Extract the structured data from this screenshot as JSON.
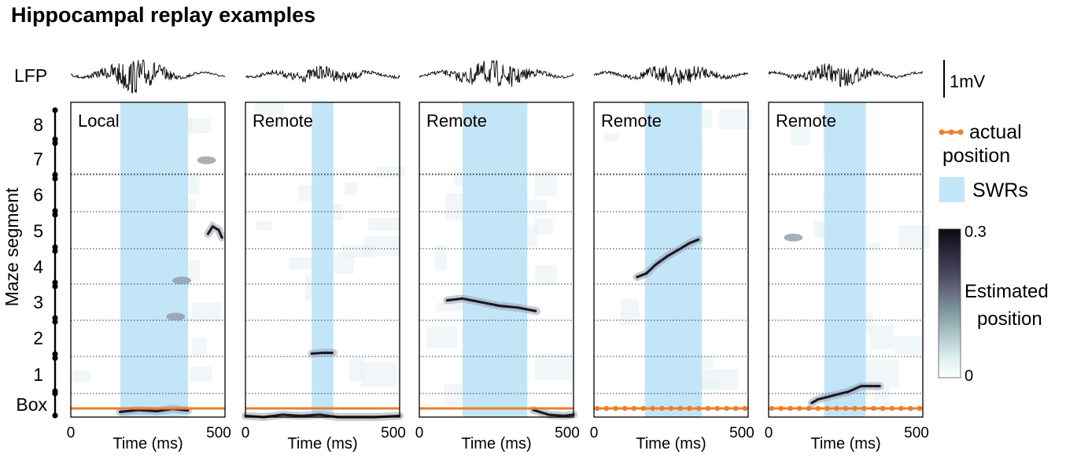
{
  "title": "Hippocampal replay examples",
  "lfp_label": "LFP",
  "scale_bar_label": "1mV",
  "y_axis_label": "Maze segment",
  "y_ticks": [
    "8",
    "7",
    "6",
    "5",
    "4",
    "3",
    "2",
    "1",
    "Box"
  ],
  "x_axis_label": "Time (ms)",
  "x_tick_start": "0",
  "x_tick_end": "500",
  "legend": {
    "actual_position_line1": "actual",
    "actual_position_line2": "position",
    "swrs": "SWRs",
    "colorbar_title_line1": "Estimated",
    "colorbar_title_line2": "position",
    "colorbar_max": "0.3",
    "colorbar_min": "0"
  },
  "colors": {
    "swr_band": "#c2e6f8",
    "actual_position": "#f07d2a",
    "posterior_dark": "#1c1a26"
  },
  "panels": [
    {
      "label": "Local",
      "swr_ms": [
        160,
        380
      ],
      "replay_paths": [
        [
          [
            160,
            0.22
          ],
          [
            220,
            0.3
          ],
          [
            280,
            0.25
          ],
          [
            330,
            0.35
          ],
          [
            380,
            0.28
          ]
        ],
        [
          [
            445,
            5.4
          ],
          [
            460,
            5.6
          ],
          [
            480,
            5.5
          ],
          [
            490,
            5.3
          ]
        ]
      ],
      "blobs": [
        [
          360,
          4.1
        ],
        [
          340,
          3.1
        ],
        [
          440,
          7.4
        ]
      ],
      "actual_style": "line"
    },
    {
      "label": "Remote",
      "swr_ms": [
        215,
        285
      ],
      "replay_paths": [
        [
          [
            215,
            2.08
          ],
          [
            250,
            2.1
          ],
          [
            285,
            2.1
          ]
        ],
        [
          [
            0,
            0.05
          ],
          [
            60,
            0.0
          ],
          [
            120,
            0.1
          ],
          [
            180,
            0.05
          ],
          [
            240,
            0.1
          ],
          [
            300,
            -0.1
          ],
          [
            360,
            -0.05
          ],
          [
            420,
            0.0
          ],
          [
            500,
            0.05
          ]
        ]
      ],
      "blobs": [],
      "actual_style": "line"
    },
    {
      "label": "Remote",
      "swr_ms": [
        140,
        350
      ],
      "replay_paths": [
        [
          [
            90,
            3.55
          ],
          [
            140,
            3.6
          ],
          [
            200,
            3.5
          ],
          [
            260,
            3.4
          ],
          [
            320,
            3.35
          ],
          [
            380,
            3.25
          ]
        ],
        [
          [
            370,
            0.3
          ],
          [
            420,
            0.1
          ],
          [
            470,
            0.05
          ],
          [
            500,
            0.1
          ]
        ]
      ],
      "blobs": [],
      "actual_style": "line"
    },
    {
      "label": "Remote",
      "swr_ms": [
        165,
        350
      ],
      "replay_paths": [
        [
          [
            140,
            4.2
          ],
          [
            170,
            4.3
          ],
          [
            200,
            4.55
          ],
          [
            240,
            4.8
          ],
          [
            280,
            5.0
          ],
          [
            310,
            5.15
          ],
          [
            340,
            5.25
          ]
        ]
      ],
      "blobs": [],
      "actual_style": "dots"
    },
    {
      "label": "Remote",
      "swr_ms": [
        180,
        315
      ],
      "replay_paths": [
        [
          [
            140,
            0.6
          ],
          [
            160,
            0.75
          ],
          [
            190,
            0.85
          ],
          [
            220,
            0.95
          ],
          [
            260,
            1.05
          ],
          [
            300,
            1.2
          ],
          [
            360,
            1.2
          ]
        ]
      ],
      "blobs": [
        [
          80,
          5.3
        ]
      ],
      "actual_style": "dots"
    }
  ]
}
